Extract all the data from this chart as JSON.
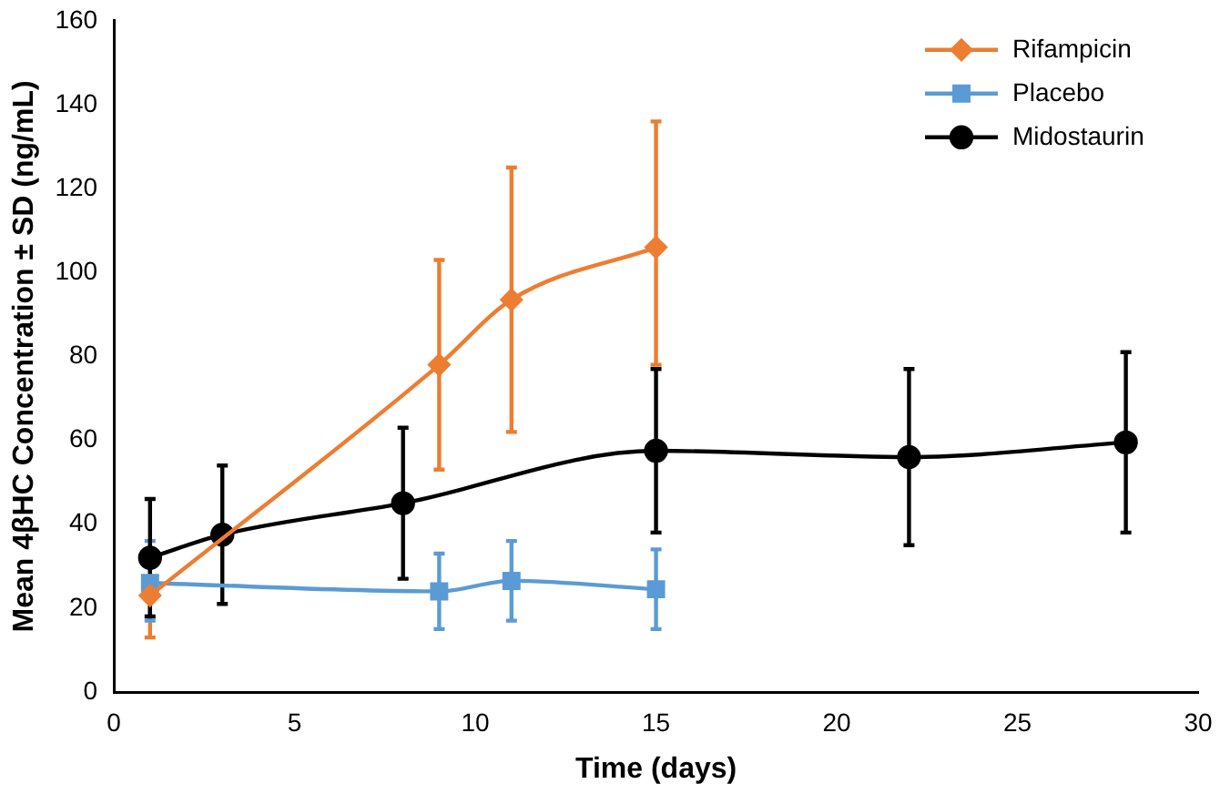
{
  "chart_data": {
    "type": "line",
    "xlabel": "Time (days)",
    "ylabel": "Mean 4βHC Concentration ± SD (ng/mL)",
    "xlim": [
      0,
      30
    ],
    "xticks": [
      0,
      5,
      10,
      15,
      20,
      25,
      30
    ],
    "ylim": [
      0,
      160
    ],
    "yticks": [
      0,
      20,
      40,
      60,
      80,
      100,
      120,
      140,
      160
    ],
    "grid": false,
    "legend": "top right",
    "series": [
      {
        "name": "Rifampicin",
        "color": "#ed7d31",
        "marker": "diamond",
        "x": [
          1,
          9,
          11,
          15
        ],
        "values": [
          23,
          78,
          93.5,
          106
        ],
        "errors": [
          [
            13,
            23
          ],
          [
            53,
            103
          ],
          [
            62,
            125
          ],
          [
            78,
            136
          ]
        ]
      },
      {
        "name": "Placebo",
        "color": "#5b9bd5",
        "marker": "square",
        "x": [
          1,
          9,
          11,
          15
        ],
        "values": [
          26,
          24,
          26.5,
          24.5
        ],
        "errors": [
          [
            17,
            36
          ],
          [
            15,
            33
          ],
          [
            17,
            36
          ],
          [
            15,
            34
          ]
        ]
      },
      {
        "name": "Midostaurin",
        "color": "#000000",
        "marker": "circle",
        "x": [
          1,
          3,
          8,
          15,
          22,
          28
        ],
        "values": [
          32,
          37.5,
          45,
          57.5,
          56,
          59.5
        ],
        "errors": [
          [
            18,
            46
          ],
          [
            21,
            54
          ],
          [
            27,
            63
          ],
          [
            38,
            77
          ],
          [
            35,
            77
          ],
          [
            38,
            81
          ]
        ]
      }
    ]
  }
}
